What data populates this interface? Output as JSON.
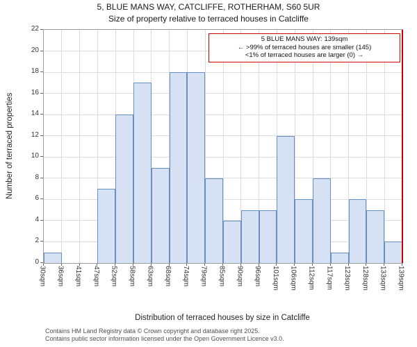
{
  "title": "5, BLUE MANS WAY, CATCLIFFE, ROTHERHAM, S60 5UR",
  "subtitle": "Size of property relative to terraced houses in Catcliffe",
  "annotation": {
    "line1": "5 BLUE MANS WAY: 139sqm",
    "line2": "← >99% of terraced houses are smaller (145)",
    "line3": "<1% of terraced houses are larger (0) →"
  },
  "footer": {
    "line1": "Contains HM Land Registry data © Crown copyright and database right 2025.",
    "line2": "Contains public sector information licensed under the Open Government Licence v3.0."
  },
  "chart_data": {
    "type": "bar",
    "title": "5, BLUE MANS WAY, CATCLIFFE, ROTHERHAM, S60 5UR — Size of property relative to terraced houses in Catcliffe",
    "xlabel": "Distribution of terraced houses by size in Catcliffe",
    "ylabel": "Number of terraced properties",
    "categories": [
      "30sqm",
      "36sqm",
      "41sqm",
      "47sqm",
      "52sqm",
      "58sqm",
      "63sqm",
      "68sqm",
      "74sqm",
      "79sqm",
      "85sqm",
      "90sqm",
      "96sqm",
      "101sqm",
      "106sqm",
      "112sqm",
      "117sqm",
      "123sqm",
      "128sqm",
      "133sqm",
      "139sqm"
    ],
    "values": [
      1,
      0,
      0,
      7,
      14,
      17,
      9,
      18,
      18,
      8,
      4,
      5,
      5,
      12,
      6,
      8,
      1,
      6,
      5,
      2
    ],
    "ylim": [
      0,
      22
    ],
    "ytick_step": 2,
    "grid": true,
    "legend": "none",
    "bar_fill": "#d6e2f3",
    "bar_border": "#6790c2",
    "marker": {
      "value": 139,
      "label": "139sqm",
      "color": "#cc0000",
      "position": "right-edge"
    }
  }
}
